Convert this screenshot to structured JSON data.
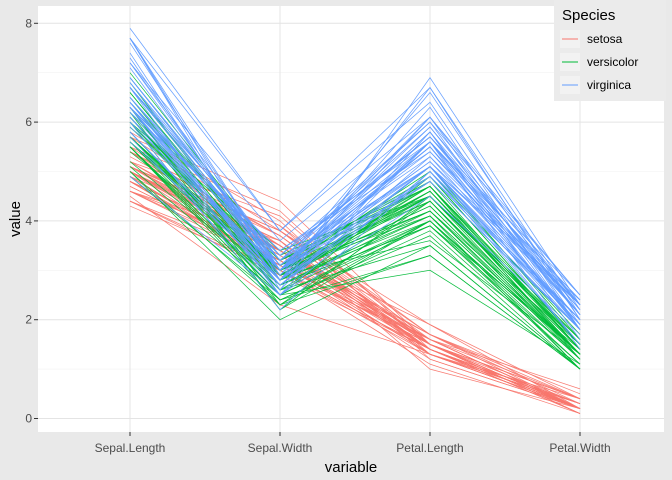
{
  "chart_data": {
    "type": "line",
    "title": "",
    "xlabel": "variable",
    "ylabel": "value",
    "categories": [
      "Sepal.Length",
      "Sepal.Width",
      "Petal.Length",
      "Petal.Width"
    ],
    "ylim": [
      -0.2,
      8.2
    ],
    "yticks": [
      0,
      2,
      4,
      6,
      8
    ],
    "grid": true,
    "legend": {
      "title": "Species",
      "placement": "top-right"
    },
    "series": [
      {
        "name": "setosa",
        "color": "#F8766D",
        "lines": [
          [
            5.1,
            3.5,
            1.4,
            0.2
          ],
          [
            4.9,
            3.0,
            1.4,
            0.2
          ],
          [
            4.7,
            3.2,
            1.3,
            0.2
          ],
          [
            4.6,
            3.1,
            1.5,
            0.2
          ],
          [
            5.0,
            3.6,
            1.4,
            0.2
          ],
          [
            5.4,
            3.9,
            1.7,
            0.4
          ],
          [
            4.6,
            3.4,
            1.4,
            0.3
          ],
          [
            5.0,
            3.4,
            1.5,
            0.2
          ],
          [
            4.4,
            2.9,
            1.4,
            0.2
          ],
          [
            4.9,
            3.1,
            1.5,
            0.1
          ],
          [
            5.4,
            3.7,
            1.5,
            0.2
          ],
          [
            4.8,
            3.4,
            1.6,
            0.2
          ],
          [
            4.8,
            3.0,
            1.4,
            0.1
          ],
          [
            4.3,
            3.0,
            1.1,
            0.1
          ],
          [
            5.8,
            4.0,
            1.2,
            0.2
          ],
          [
            5.7,
            4.4,
            1.5,
            0.4
          ],
          [
            5.4,
            3.9,
            1.3,
            0.4
          ],
          [
            5.1,
            3.5,
            1.4,
            0.3
          ],
          [
            5.7,
            3.8,
            1.7,
            0.3
          ],
          [
            5.1,
            3.8,
            1.5,
            0.3
          ],
          [
            5.4,
            3.4,
            1.7,
            0.2
          ],
          [
            5.1,
            3.7,
            1.5,
            0.4
          ],
          [
            4.6,
            3.6,
            1.0,
            0.2
          ],
          [
            5.1,
            3.3,
            1.7,
            0.5
          ],
          [
            4.8,
            3.4,
            1.9,
            0.2
          ],
          [
            5.0,
            3.0,
            1.6,
            0.2
          ],
          [
            5.0,
            3.4,
            1.6,
            0.4
          ],
          [
            5.2,
            3.5,
            1.5,
            0.2
          ],
          [
            5.2,
            3.4,
            1.4,
            0.2
          ],
          [
            4.7,
            3.2,
            1.6,
            0.2
          ],
          [
            4.8,
            3.1,
            1.6,
            0.2
          ],
          [
            5.4,
            3.4,
            1.5,
            0.4
          ],
          [
            5.2,
            4.1,
            1.5,
            0.1
          ],
          [
            5.5,
            4.2,
            1.4,
            0.2
          ],
          [
            4.9,
            3.1,
            1.5,
            0.2
          ],
          [
            5.0,
            3.2,
            1.2,
            0.2
          ],
          [
            5.5,
            3.5,
            1.3,
            0.2
          ],
          [
            4.9,
            3.6,
            1.4,
            0.1
          ],
          [
            4.4,
            3.0,
            1.3,
            0.2
          ],
          [
            5.1,
            3.4,
            1.5,
            0.2
          ],
          [
            5.0,
            3.5,
            1.3,
            0.3
          ],
          [
            4.5,
            2.3,
            1.3,
            0.3
          ],
          [
            4.4,
            3.2,
            1.3,
            0.2
          ],
          [
            5.0,
            3.5,
            1.6,
            0.6
          ],
          [
            5.1,
            3.8,
            1.9,
            0.4
          ],
          [
            4.8,
            3.0,
            1.4,
            0.3
          ],
          [
            5.1,
            3.8,
            1.6,
            0.2
          ],
          [
            4.6,
            3.2,
            1.4,
            0.2
          ],
          [
            5.3,
            3.7,
            1.5,
            0.2
          ],
          [
            5.0,
            3.3,
            1.4,
            0.2
          ]
        ]
      },
      {
        "name": "versicolor",
        "color": "#00BA38",
        "lines": [
          [
            7.0,
            3.2,
            4.7,
            1.4
          ],
          [
            6.4,
            3.2,
            4.5,
            1.5
          ],
          [
            6.9,
            3.1,
            4.9,
            1.5
          ],
          [
            5.5,
            2.3,
            4.0,
            1.3
          ],
          [
            6.5,
            2.8,
            4.6,
            1.5
          ],
          [
            5.7,
            2.8,
            4.5,
            1.3
          ],
          [
            6.3,
            3.3,
            4.7,
            1.6
          ],
          [
            4.9,
            2.4,
            3.3,
            1.0
          ],
          [
            6.6,
            2.9,
            4.6,
            1.3
          ],
          [
            5.2,
            2.7,
            3.9,
            1.4
          ],
          [
            5.0,
            2.0,
            3.5,
            1.0
          ],
          [
            5.9,
            3.0,
            4.2,
            1.5
          ],
          [
            6.0,
            2.2,
            4.0,
            1.0
          ],
          [
            6.1,
            2.9,
            4.7,
            1.4
          ],
          [
            5.6,
            2.9,
            3.6,
            1.3
          ],
          [
            6.7,
            3.1,
            4.4,
            1.4
          ],
          [
            5.6,
            3.0,
            4.5,
            1.5
          ],
          [
            5.8,
            2.7,
            4.1,
            1.0
          ],
          [
            6.2,
            2.2,
            4.5,
            1.5
          ],
          [
            5.6,
            2.5,
            3.9,
            1.1
          ],
          [
            5.9,
            3.2,
            4.8,
            1.8
          ],
          [
            6.1,
            2.8,
            4.0,
            1.3
          ],
          [
            6.3,
            2.5,
            4.9,
            1.5
          ],
          [
            6.1,
            2.8,
            4.7,
            1.2
          ],
          [
            6.4,
            2.9,
            4.3,
            1.3
          ],
          [
            6.6,
            3.0,
            4.4,
            1.4
          ],
          [
            6.8,
            2.8,
            4.8,
            1.4
          ],
          [
            6.7,
            3.0,
            5.0,
            1.7
          ],
          [
            6.0,
            2.9,
            4.5,
            1.5
          ],
          [
            5.7,
            2.6,
            3.5,
            1.0
          ],
          [
            5.5,
            2.4,
            3.8,
            1.1
          ],
          [
            5.5,
            2.4,
            3.7,
            1.0
          ],
          [
            5.8,
            2.7,
            3.9,
            1.2
          ],
          [
            6.0,
            2.7,
            5.1,
            1.6
          ],
          [
            5.4,
            3.0,
            4.5,
            1.5
          ],
          [
            6.0,
            3.4,
            4.5,
            1.6
          ],
          [
            6.7,
            3.1,
            4.7,
            1.5
          ],
          [
            6.3,
            2.3,
            4.4,
            1.3
          ],
          [
            5.6,
            3.0,
            4.1,
            1.3
          ],
          [
            5.5,
            2.5,
            4.0,
            1.3
          ],
          [
            5.5,
            2.6,
            4.4,
            1.2
          ],
          [
            6.1,
            3.0,
            4.6,
            1.4
          ],
          [
            5.8,
            2.6,
            4.0,
            1.2
          ],
          [
            5.0,
            2.3,
            3.3,
            1.0
          ],
          [
            5.6,
            2.7,
            4.2,
            1.3
          ],
          [
            5.7,
            3.0,
            4.2,
            1.2
          ],
          [
            5.7,
            2.9,
            4.2,
            1.3
          ],
          [
            6.2,
            2.9,
            4.3,
            1.3
          ],
          [
            5.1,
            2.5,
            3.0,
            1.1
          ],
          [
            5.7,
            2.8,
            4.1,
            1.3
          ]
        ]
      },
      {
        "name": "virginica",
        "color": "#619CFF",
        "lines": [
          [
            6.3,
            3.3,
            6.0,
            2.5
          ],
          [
            5.8,
            2.7,
            5.1,
            1.9
          ],
          [
            7.1,
            3.0,
            5.9,
            2.1
          ],
          [
            6.3,
            2.9,
            5.6,
            1.8
          ],
          [
            6.5,
            3.0,
            5.8,
            2.2
          ],
          [
            7.6,
            3.0,
            6.6,
            2.1
          ],
          [
            4.9,
            2.5,
            4.5,
            1.7
          ],
          [
            7.3,
            2.9,
            6.3,
            1.8
          ],
          [
            6.7,
            2.5,
            5.8,
            1.8
          ],
          [
            7.2,
            3.6,
            6.1,
            2.5
          ],
          [
            6.5,
            3.2,
            5.1,
            2.0
          ],
          [
            6.4,
            2.7,
            5.3,
            1.9
          ],
          [
            6.8,
            3.0,
            5.5,
            2.1
          ],
          [
            5.7,
            2.5,
            5.0,
            2.0
          ],
          [
            5.8,
            2.8,
            5.1,
            2.4
          ],
          [
            6.4,
            3.2,
            5.3,
            2.3
          ],
          [
            6.5,
            3.0,
            5.5,
            1.8
          ],
          [
            7.7,
            3.8,
            6.7,
            2.2
          ],
          [
            7.7,
            2.6,
            6.9,
            2.3
          ],
          [
            6.0,
            2.2,
            5.0,
            1.5
          ],
          [
            6.9,
            3.2,
            5.7,
            2.3
          ],
          [
            5.6,
            2.8,
            4.9,
            2.0
          ],
          [
            7.7,
            2.8,
            6.7,
            2.0
          ],
          [
            6.3,
            2.7,
            4.9,
            1.8
          ],
          [
            6.7,
            3.3,
            5.7,
            2.1
          ],
          [
            7.2,
            3.2,
            6.0,
            1.8
          ],
          [
            6.2,
            2.8,
            4.8,
            1.8
          ],
          [
            6.1,
            3.0,
            4.9,
            1.8
          ],
          [
            6.4,
            2.8,
            5.6,
            2.1
          ],
          [
            7.2,
            3.0,
            5.8,
            1.6
          ],
          [
            7.4,
            2.8,
            6.1,
            1.9
          ],
          [
            7.9,
            3.8,
            6.4,
            2.0
          ],
          [
            6.4,
            2.8,
            5.6,
            2.2
          ],
          [
            6.3,
            2.8,
            5.1,
            1.5
          ],
          [
            6.1,
            2.6,
            5.6,
            1.4
          ],
          [
            7.7,
            3.0,
            6.1,
            2.3
          ],
          [
            6.3,
            3.4,
            5.6,
            2.4
          ],
          [
            6.4,
            3.1,
            5.5,
            1.8
          ],
          [
            6.0,
            3.0,
            4.8,
            1.8
          ],
          [
            6.9,
            3.1,
            5.4,
            2.1
          ],
          [
            6.7,
            3.1,
            5.6,
            2.4
          ],
          [
            6.9,
            3.1,
            5.1,
            2.3
          ],
          [
            5.8,
            2.7,
            5.1,
            1.9
          ],
          [
            6.8,
            3.2,
            5.9,
            2.3
          ],
          [
            6.7,
            3.3,
            5.7,
            2.5
          ],
          [
            6.7,
            3.0,
            5.2,
            2.3
          ],
          [
            6.3,
            2.5,
            5.0,
            1.9
          ],
          [
            6.5,
            3.0,
            5.2,
            2.0
          ],
          [
            6.2,
            3.4,
            5.4,
            2.3
          ],
          [
            5.9,
            3.0,
            5.1,
            1.8
          ]
        ]
      }
    ]
  }
}
